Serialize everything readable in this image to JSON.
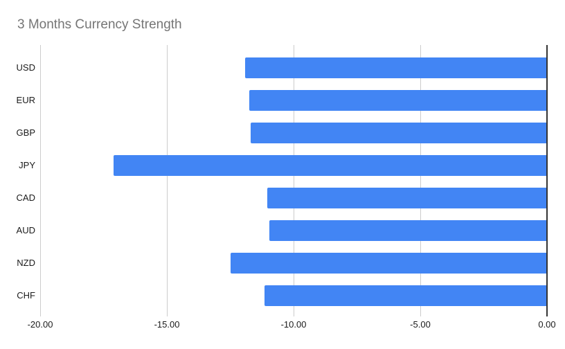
{
  "chart": {
    "title": "3 Months Currency Strength"
  },
  "colors": {
    "bar": "#4285f4",
    "gridline": "#cccccc",
    "zero_axis": "#333333",
    "title_text": "#757575",
    "axis_text": "#1a1a1a",
    "background": "#ffffff"
  },
  "chart_data": {
    "type": "bar",
    "orientation": "horizontal",
    "title": "3 Months Currency Strength",
    "categories": [
      "USD",
      "EUR",
      "GBP",
      "JPY",
      "CAD",
      "AUD",
      "NZD",
      "CHF"
    ],
    "values": [
      -11.9,
      -11.75,
      -11.7,
      -17.1,
      -11.05,
      -10.95,
      -12.5,
      -11.15
    ],
    "series": [
      {
        "name": "3 Months Currency Strength",
        "values": [
          -11.9,
          -11.75,
          -11.7,
          -17.1,
          -11.05,
          -10.95,
          -12.5,
          -11.15
        ]
      }
    ],
    "xlabel": "",
    "ylabel": "",
    "xlim": [
      -20,
      0
    ],
    "x_ticks": [
      -20,
      -15,
      -10,
      -5,
      0
    ],
    "x_tick_labels": [
      "-20.00",
      "-15.00",
      "-10.00",
      "-5.00",
      "0.00"
    ],
    "grid": "vertical",
    "legend": "none"
  }
}
